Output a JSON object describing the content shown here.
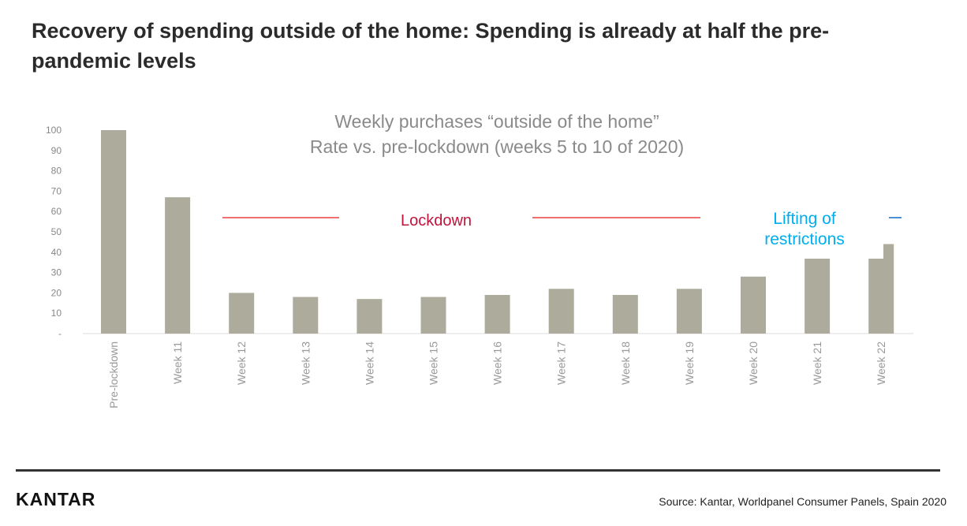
{
  "title": "Recovery of spending outside of the home: Spending is already at half the pre-pandemic levels",
  "footer": {
    "logo": "KANTAR",
    "source": "Source: Kantar, Worldpanel Consumer Panels, Spain 2020"
  },
  "chart_data": {
    "type": "bar",
    "title": "Weekly purchases “outside of the home”",
    "subtitle": "Rate vs. pre-lockdown (weeks 5 to 10 of 2020)",
    "categories": [
      "Pre-lockdown",
      "Week 11",
      "Week 12",
      "Week 13",
      "Week 14",
      "Week 15",
      "Week 16",
      "Week 17",
      "Week 18",
      "Week 19",
      "Week 20",
      "Week 21",
      "Week 22"
    ],
    "values": [
      100,
      67,
      20,
      18,
      17,
      18,
      19,
      22,
      19,
      22,
      28,
      37,
      44
    ],
    "ylim": [
      0,
      100
    ],
    "yticks": [
      "-",
      "10",
      "20",
      "30",
      "40",
      "50",
      "60",
      "70",
      "80",
      "90",
      "100"
    ],
    "grid": false,
    "bar_color": "#adac9c",
    "annotations": [
      {
        "text": "Lockdown",
        "color": "#c0143c",
        "line_color": "#f07070"
      },
      {
        "text_lines": [
          "Lifting of",
          "restrictions"
        ],
        "color": "#00aeef",
        "line_color": "#4a90d9"
      }
    ]
  }
}
